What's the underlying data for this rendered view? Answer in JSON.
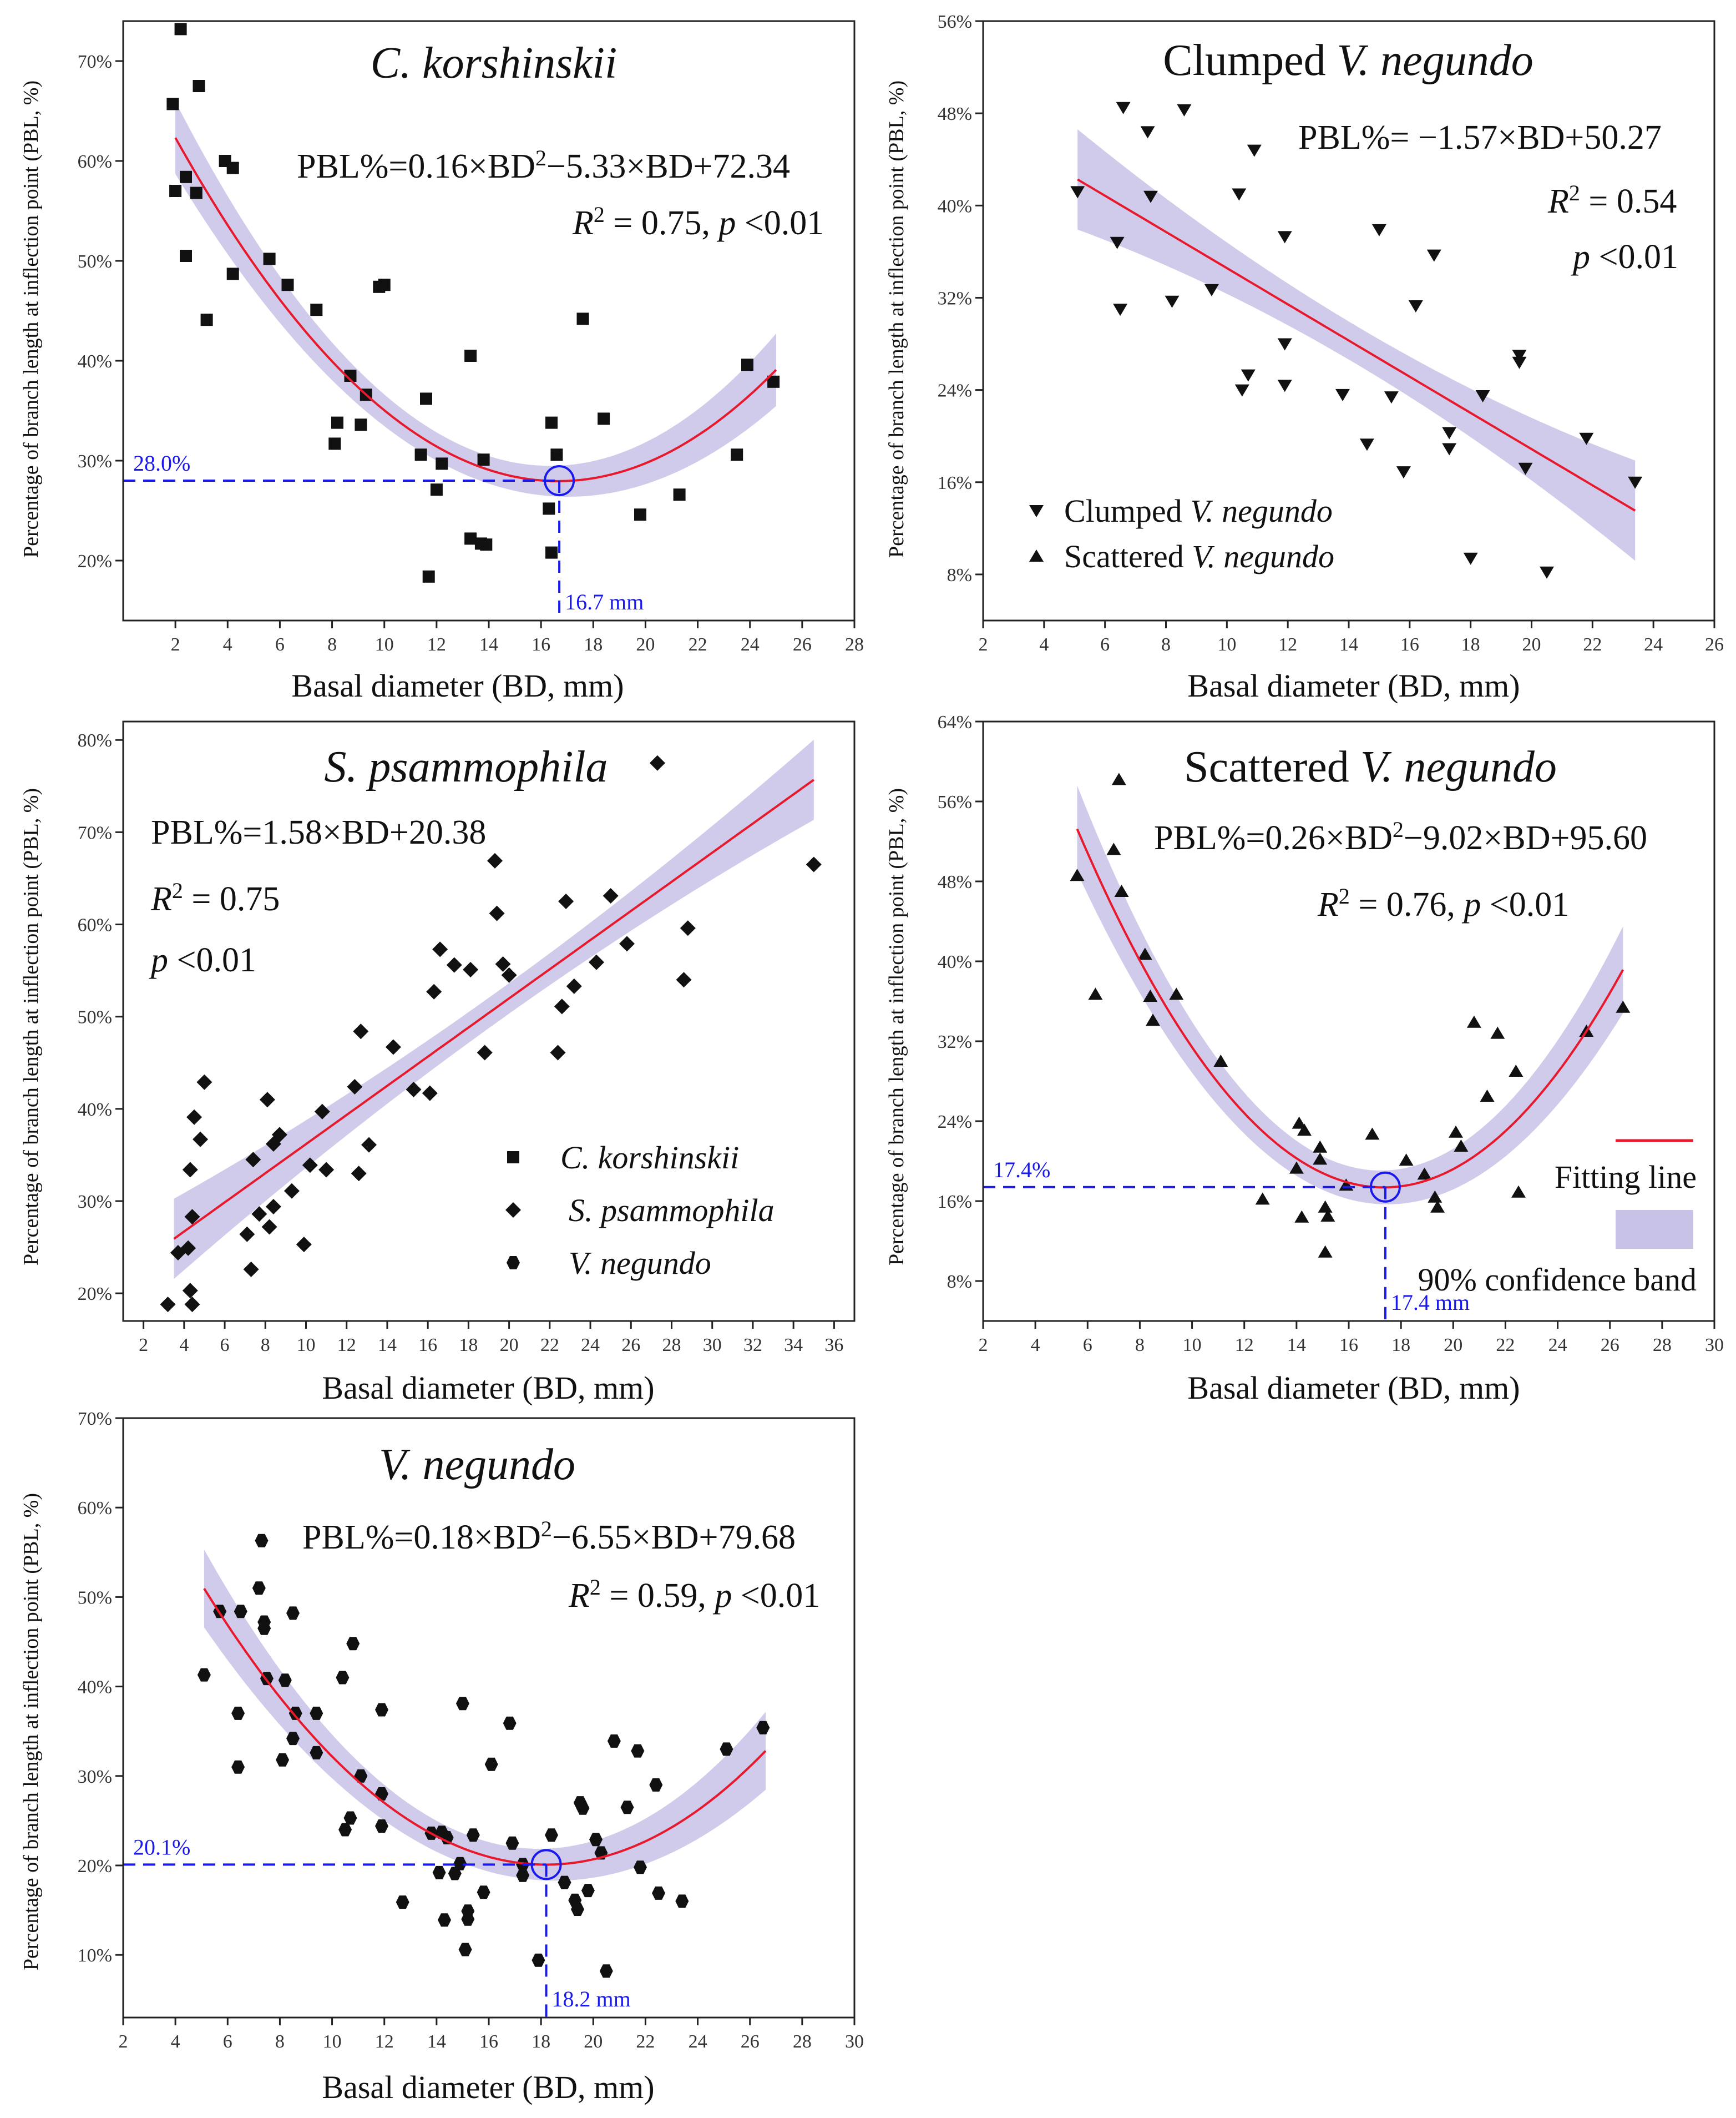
{
  "colors": {
    "fit": "#e8192c",
    "band": "#c8c2e6",
    "marker": "#111111",
    "guide": "#1a1aee"
  },
  "chart_data": [
    {
      "type": "scatter",
      "id": "ck",
      "title": {
        "pre": "",
        "italic": "C. korshinskii"
      },
      "xlabel": "Basal diameter (BD, mm)",
      "ylabel": "Percentage of branch length at inflection point (PBL, %)",
      "xlim": [
        0,
        28
      ],
      "xticks": [
        2,
        4,
        6,
        8,
        10,
        12,
        14,
        16,
        18,
        20,
        22,
        24,
        26,
        28
      ],
      "ylim": [
        14,
        74
      ],
      "yticks": [
        20,
        30,
        40,
        50,
        60,
        70
      ],
      "marker": "square",
      "equation": {
        "pre": "PBL%=0.16×BD",
        "sup": "2",
        "post": "−5.33×BD+72.34"
      },
      "stats": {
        "r2": " = 0.75, ",
        "p": " <0.01"
      },
      "fit": {
        "kind": "quadratic",
        "a": 0.16,
        "b": -5.33,
        "c": 72.34,
        "xmin": 2,
        "xmax": 25,
        "band": 2.5
      },
      "guide": {
        "x": 16.7,
        "y": 28.0,
        "xlabel": "16.7 mm",
        "ylabel": "28.0%"
      },
      "points": [
        [
          1.9,
          65.7
        ],
        [
          2.0,
          57
        ],
        [
          2.2,
          73.2
        ],
        [
          2.4,
          50.5
        ],
        [
          2.4,
          58.4
        ],
        [
          2.8,
          56.8
        ],
        [
          2.9,
          67.5
        ],
        [
          3.2,
          44.1
        ],
        [
          3.9,
          60
        ],
        [
          4.2,
          59.3
        ],
        [
          4.2,
          48.7
        ],
        [
          5.6,
          50.2
        ],
        [
          6.3,
          47.6
        ],
        [
          7.4,
          45.1
        ],
        [
          8.1,
          31.7
        ],
        [
          8.2,
          33.8
        ],
        [
          8.7,
          38.5
        ],
        [
          9.1,
          33.6
        ],
        [
          9.3,
          36.6
        ],
        [
          9.8,
          47.4
        ],
        [
          10.0,
          47.6
        ],
        [
          11.4,
          30.6
        ],
        [
          11.6,
          36.2
        ],
        [
          11.7,
          18.4
        ],
        [
          12.0,
          27.1
        ],
        [
          12.2,
          29.7
        ],
        [
          13.3,
          22.2
        ],
        [
          13.3,
          40.5
        ],
        [
          13.7,
          21.7
        ],
        [
          13.8,
          30.1
        ],
        [
          13.9,
          21.6
        ],
        [
          16.3,
          25.2
        ],
        [
          16.4,
          20.8
        ],
        [
          16.4,
          33.8
        ],
        [
          16.6,
          30.6
        ],
        [
          17.6,
          44.2
        ],
        [
          18.4,
          34.2
        ],
        [
          19.8,
          24.6
        ],
        [
          21.3,
          26.6
        ],
        [
          23.5,
          30.6
        ],
        [
          23.9,
          39.6
        ],
        [
          24.9,
          37.9
        ]
      ]
    },
    {
      "type": "scatter",
      "id": "cvn",
      "title": {
        "pre": "Clumped ",
        "italic": "V. negundo"
      },
      "xlabel": "Basal diameter (BD, mm)",
      "ylabel": "Percentage of branch length at inflection point (PBL, %)",
      "xlim": [
        2,
        26
      ],
      "xticks": [
        2,
        4,
        6,
        8,
        10,
        12,
        14,
        16,
        18,
        20,
        22,
        24,
        26
      ],
      "ylim": [
        4,
        56
      ],
      "yticks": [
        8,
        16,
        24,
        32,
        40,
        48,
        56
      ],
      "marker": "triangle-down",
      "equation": {
        "pre": "PBL%= −1.57×BD+50.27",
        "sup": "",
        "post": ""
      },
      "stats": {
        "r2": " = 0.54",
        "p": " <0.01"
      },
      "fit": {
        "kind": "linear",
        "a": 0,
        "b": -1.57,
        "c": 50.27,
        "xmin": 5.1,
        "xmax": 23.4,
        "band": 3
      },
      "legend": [
        {
          "marker": "triangle-down",
          "pre": "Clumped ",
          "italic": "V. negundo"
        },
        {
          "marker": "triangle-up",
          "pre": "Scattered ",
          "italic": "V. negundo"
        }
      ],
      "points": [
        [
          5.1,
          41.2
        ],
        [
          6.4,
          36.8
        ],
        [
          6.5,
          31.0
        ],
        [
          6.6,
          48.5
        ],
        [
          7.4,
          46.4
        ],
        [
          7.5,
          40.8
        ],
        [
          8.2,
          31.7
        ],
        [
          8.6,
          48.3
        ],
        [
          9.5,
          32.7
        ],
        [
          10.4,
          41.0
        ],
        [
          10.5,
          24.0
        ],
        [
          10.7,
          25.3
        ],
        [
          10.9,
          44.8
        ],
        [
          11.9,
          37.3
        ],
        [
          11.9,
          28.0
        ],
        [
          11.9,
          24.4
        ],
        [
          13.8,
          23.6
        ],
        [
          14.6,
          19.3
        ],
        [
          15.0,
          37.9
        ],
        [
          15.4,
          23.4
        ],
        [
          15.8,
          16.9
        ],
        [
          16.2,
          31.3
        ],
        [
          16.8,
          35.7
        ],
        [
          17.3,
          20.3
        ],
        [
          17.3,
          18.9
        ],
        [
          18.0,
          9.4
        ],
        [
          18.4,
          23.5
        ],
        [
          19.6,
          27.0
        ],
        [
          19.6,
          26.4
        ],
        [
          19.8,
          17.2
        ],
        [
          20.5,
          8.2
        ],
        [
          21.8,
          19.8
        ],
        [
          23.4,
          16.0
        ]
      ]
    },
    {
      "type": "scatter",
      "id": "sp",
      "title": {
        "pre": "",
        "italic": "S. psammophila"
      },
      "xlabel": "Basal diameter (BD, mm)",
      "ylabel": "Percentage of branch length at inflection point (PBL, %)",
      "xlim": [
        1,
        37
      ],
      "xticks": [
        2,
        4,
        6,
        8,
        10,
        12,
        14,
        16,
        18,
        20,
        22,
        24,
        26,
        28,
        30,
        32,
        34,
        36
      ],
      "ylim": [
        17,
        82
      ],
      "yticks": [
        20,
        30,
        40,
        50,
        60,
        70,
        80
      ],
      "marker": "diamond",
      "equation": {
        "pre": "PBL%=1.58×BD+20.38",
        "sup": "",
        "post": ""
      },
      "stats": {
        "r2": " = 0.75",
        "p": " <0.01"
      },
      "fit": {
        "kind": "linear",
        "a": 0,
        "b": 1.58,
        "c": 20.38,
        "xmin": 3.5,
        "xmax": 35,
        "band": 3
      },
      "legend": [
        {
          "marker": "square",
          "pre": "",
          "italic": "C. korshinskii"
        },
        {
          "marker": "diamond",
          "pre": "",
          "italic": "S. psammophila"
        },
        {
          "marker": "hexagon",
          "pre": "",
          "italic": "V. negundo"
        }
      ],
      "points": [
        [
          3.2,
          18.8
        ],
        [
          3.7,
          24.4
        ],
        [
          4.2,
          24.9
        ],
        [
          4.3,
          33.4
        ],
        [
          4.3,
          20.3
        ],
        [
          4.4,
          18.8
        ],
        [
          4.4,
          28.3
        ],
        [
          4.5,
          39.1
        ],
        [
          4.8,
          36.7
        ],
        [
          5.0,
          42.9
        ],
        [
          7.1,
          26.4
        ],
        [
          7.3,
          22.6
        ],
        [
          7.4,
          34.5
        ],
        [
          7.7,
          28.6
        ],
        [
          8.1,
          41.0
        ],
        [
          8.2,
          27.2
        ],
        [
          8.4,
          36.2
        ],
        [
          8.4,
          29.4
        ],
        [
          8.7,
          37.2
        ],
        [
          9.3,
          31.1
        ],
        [
          9.9,
          25.3
        ],
        [
          10.2,
          33.9
        ],
        [
          10.8,
          39.7
        ],
        [
          11.0,
          33.4
        ],
        [
          12.4,
          42.4
        ],
        [
          12.6,
          33.0
        ],
        [
          12.7,
          48.4
        ],
        [
          13.1,
          36.1
        ],
        [
          14.3,
          46.7
        ],
        [
          15.3,
          42.1
        ],
        [
          16.1,
          41.7
        ],
        [
          16.3,
          52.7
        ],
        [
          16.6,
          57.3
        ],
        [
          17.3,
          55.6
        ],
        [
          18.1,
          55.1
        ],
        [
          18.8,
          46.1
        ],
        [
          19.3,
          66.9
        ],
        [
          19.4,
          61.2
        ],
        [
          19.7,
          55.7
        ],
        [
          20.0,
          54.5
        ],
        [
          22.4,
          46.1
        ],
        [
          22.6,
          51.1
        ],
        [
          22.8,
          62.5
        ],
        [
          23.2,
          53.3
        ],
        [
          24.3,
          55.9
        ],
        [
          25.0,
          63.1
        ],
        [
          25.8,
          57.9
        ],
        [
          27.3,
          77.5
        ],
        [
          28.6,
          54.0
        ],
        [
          28.8,
          59.6
        ],
        [
          35.0,
          66.5
        ]
      ]
    },
    {
      "type": "scatter",
      "id": "svn",
      "title": {
        "pre": "Scattered ",
        "italic": "V. negundo"
      },
      "xlabel": "Basal diameter (BD, mm)",
      "ylabel": "Percentage of branch length at inflection point (PBL, %)",
      "xlim": [
        2,
        30
      ],
      "xticks": [
        2,
        4,
        6,
        8,
        10,
        12,
        14,
        16,
        18,
        20,
        22,
        24,
        26,
        28,
        30
      ],
      "ylim": [
        4,
        64
      ],
      "yticks": [
        8,
        16,
        24,
        32,
        40,
        48,
        56,
        64
      ],
      "marker": "triangle-up",
      "equation": {
        "pre": "PBL%=0.26×BD",
        "sup": "2",
        "post": "−9.02×BD+95.60"
      },
      "stats": {
        "r2": " = 0.76, ",
        "p": " <0.01"
      },
      "fit": {
        "kind": "quadratic",
        "a": 0.26,
        "b": -9.02,
        "c": 95.6,
        "xmin": 5.6,
        "xmax": 26.5,
        "band": 3
      },
      "guide": {
        "x": 17.4,
        "y": 17.4,
        "xlabel": "17.4 mm",
        "ylabel": "17.4%"
      },
      "legend": [
        {
          "marker": "line",
          "pre": "Fitting line",
          "italic": ""
        },
        {
          "marker": "band",
          "pre": "90% confidence band",
          "italic": ""
        }
      ],
      "points": [
        [
          5.6,
          48.6
        ],
        [
          6.3,
          36.7
        ],
        [
          7.0,
          51.2
        ],
        [
          7.2,
          58.2
        ],
        [
          7.3,
          47.0
        ],
        [
          8.2,
          40.7
        ],
        [
          8.4,
          36.5
        ],
        [
          8.5,
          34.1
        ],
        [
          9.4,
          36.7
        ],
        [
          11.1,
          30.0
        ],
        [
          12.7,
          16.2
        ],
        [
          14.0,
          19.3
        ],
        [
          14.1,
          23.8
        ],
        [
          14.2,
          14.4
        ],
        [
          14.3,
          23.1
        ],
        [
          14.9,
          21.4
        ],
        [
          14.9,
          20.2
        ],
        [
          15.1,
          15.4
        ],
        [
          15.1,
          10.9
        ],
        [
          15.2,
          14.5
        ],
        [
          15.9,
          17.6
        ],
        [
          16.9,
          22.7
        ],
        [
          18.2,
          20.1
        ],
        [
          18.9,
          18.7
        ],
        [
          19.3,
          16.4
        ],
        [
          19.4,
          15.4
        ],
        [
          20.1,
          22.9
        ],
        [
          20.3,
          21.5
        ],
        [
          20.8,
          33.9
        ],
        [
          21.3,
          26.5
        ],
        [
          21.7,
          32.8
        ],
        [
          22.4,
          29.0
        ],
        [
          22.5,
          16.9
        ],
        [
          25.1,
          33.0
        ],
        [
          26.5,
          35.4
        ]
      ]
    },
    {
      "type": "scatter",
      "id": "vn",
      "title": {
        "pre": "",
        "italic": "V. negundo"
      },
      "xlabel": "Basal diameter (BD, mm)",
      "ylabel": "Percentage of branch length at inflection point (PBL, %)",
      "xlim": [
        2,
        30
      ],
      "xticks": [
        2,
        4,
        6,
        8,
        10,
        12,
        14,
        16,
        18,
        20,
        22,
        24,
        26,
        28,
        30
      ],
      "ylim": [
        3,
        70
      ],
      "yticks": [
        10,
        20,
        30,
        40,
        50,
        60,
        70
      ],
      "marker": "hexagon",
      "equation": {
        "pre": "PBL%=0.18×BD",
        "sup": "2",
        "post": "−6.55×BD+79.68"
      },
      "stats": {
        "r2": " = 0.59, ",
        "p": " <0.01"
      },
      "fit": {
        "kind": "quadratic",
        "a": 0.18,
        "b": -6.55,
        "c": 79.68,
        "xmin": 5.1,
        "xmax": 26.6,
        "band": 3
      },
      "guide": {
        "x": 18.2,
        "y": 20.1,
        "xlabel": "18.2 mm",
        "ylabel": "20.1%"
      },
      "points": [
        [
          5.1,
          41.3
        ],
        [
          5.7,
          48.4
        ],
        [
          6.4,
          37.0
        ],
        [
          6.4,
          31.0
        ],
        [
          6.5,
          48.4
        ],
        [
          7.2,
          51.0
        ],
        [
          7.3,
          56.3
        ],
        [
          7.4,
          46.5
        ],
        [
          7.4,
          47.2
        ],
        [
          7.5,
          40.9
        ],
        [
          8.1,
          31.8
        ],
        [
          8.2,
          40.7
        ],
        [
          8.5,
          34.2
        ],
        [
          8.5,
          48.2
        ],
        [
          8.6,
          37.0
        ],
        [
          9.4,
          32.6
        ],
        [
          9.4,
          37.0
        ],
        [
          10.4,
          41.0
        ],
        [
          10.5,
          24.0
        ],
        [
          10.7,
          25.3
        ],
        [
          10.8,
          44.8
        ],
        [
          11.1,
          30.0
        ],
        [
          11.9,
          28.0
        ],
        [
          11.9,
          24.4
        ],
        [
          11.9,
          37.4
        ],
        [
          12.7,
          15.9
        ],
        [
          13.8,
          23.6
        ],
        [
          14.1,
          19.2
        ],
        [
          14.2,
          23.7
        ],
        [
          14.3,
          13.9
        ],
        [
          14.4,
          23.1
        ],
        [
          14.7,
          19.1
        ],
        [
          14.9,
          20.2
        ],
        [
          15.0,
          38.1
        ],
        [
          15.1,
          10.6
        ],
        [
          15.2,
          14.9
        ],
        [
          15.2,
          14.0
        ],
        [
          15.4,
          23.4
        ],
        [
          15.8,
          17.0
        ],
        [
          16.1,
          31.3
        ],
        [
          16.8,
          35.9
        ],
        [
          16.9,
          22.5
        ],
        [
          17.3,
          18.9
        ],
        [
          17.3,
          20.1
        ],
        [
          17.9,
          9.4
        ],
        [
          18.4,
          23.4
        ],
        [
          18.9,
          18.1
        ],
        [
          19.3,
          16.1
        ],
        [
          19.4,
          15.1
        ],
        [
          19.5,
          27.0
        ],
        [
          19.6,
          26.4
        ],
        [
          19.8,
          17.2
        ],
        [
          20.1,
          22.9
        ],
        [
          20.3,
          21.4
        ],
        [
          20.5,
          8.2
        ],
        [
          20.8,
          33.9
        ],
        [
          21.3,
          26.5
        ],
        [
          21.7,
          32.8
        ],
        [
          21.8,
          19.8
        ],
        [
          22.4,
          29.0
        ],
        [
          22.5,
          16.9
        ],
        [
          23.4,
          16.0
        ],
        [
          25.1,
          33.0
        ],
        [
          26.5,
          35.4
        ]
      ]
    }
  ]
}
